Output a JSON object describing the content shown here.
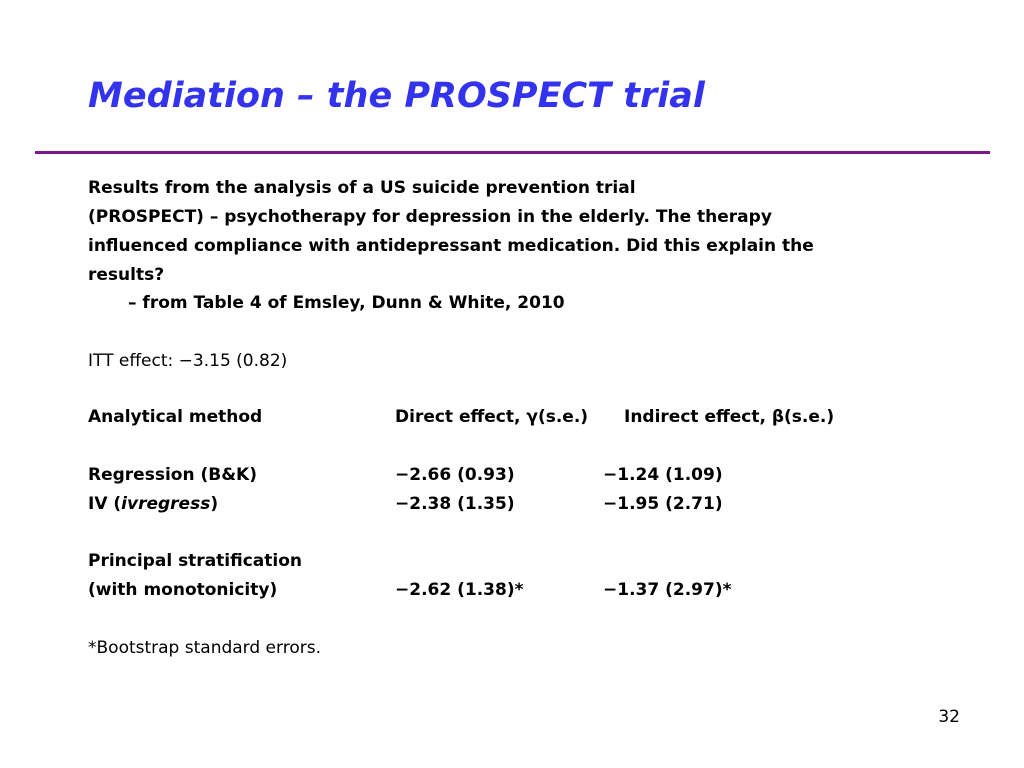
{
  "title": "Mediation – the PROSPECT trial",
  "colors": {
    "title": "#3333ee",
    "rule": "#7a1a8a",
    "text": "#000000"
  },
  "intro": {
    "line1": "Results from the analysis of a US suicide prevention trial",
    "line2": "(PROSPECT) – psychotherapy for depression in the elderly. The therapy",
    "line3": "influenced compliance with antidepressant medication. Did this explain the",
    "line4": "results?",
    "source": "– from Table 4 of Emsley, Dunn & White, 2010"
  },
  "itt_effect": "ITT effect: −3.15 (0.82)",
  "table": {
    "headers": [
      "Analytical method",
      "Direct effect, γ(s.e.)",
      "Indirect effect, β(s.e.)"
    ],
    "rows": [
      {
        "method": "Regression (B&K)",
        "method_suffix": "",
        "method_italic": "",
        "direct": "−2.66 (0.93)",
        "indirect": "−1.24 (1.09)"
      },
      {
        "method": "IV (",
        "method_italic": "ivregress",
        "method_suffix": ")",
        "direct": "−2.38 (1.35)",
        "indirect": "−1.95 (2.71)"
      }
    ],
    "stratification": {
      "label1": "Principal stratification",
      "label2": "(with monotonicity)",
      "direct": "−2.62 (1.38)*",
      "indirect": "−1.37 (2.97)*"
    }
  },
  "footnote": "*Bootstrap standard errors.",
  "page_number": "32"
}
